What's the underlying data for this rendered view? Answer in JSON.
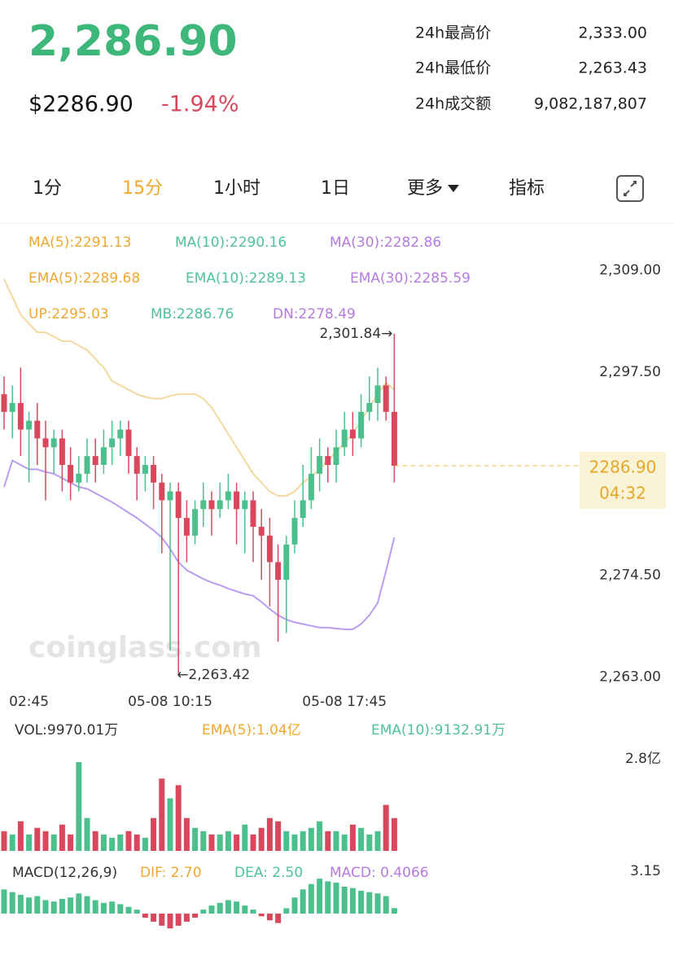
{
  "header": {
    "price": "2,286.90",
    "usd_price": "$2286.90",
    "change": "-1.94%",
    "stats": [
      {
        "label": "24h最高价",
        "value": "2,333.00"
      },
      {
        "label": "24h最低价",
        "value": "2,263.43"
      },
      {
        "label": "24h成交额",
        "value": "9,082,187,807"
      }
    ]
  },
  "tabs": [
    "1分",
    "15分",
    "1小时",
    "1日",
    "更多",
    "指标"
  ],
  "indicators": {
    "ma": [
      "MA(5):2291.13",
      "MA(10):2290.16",
      "MA(30):2282.86"
    ],
    "ema": [
      "EMA(5):2289.68",
      "EMA(10):2289.13",
      "EMA(30):2285.59"
    ],
    "boll": [
      "UP:2295.03",
      "MB:2286.76",
      "DN:2278.49"
    ]
  },
  "chart_data": [
    {
      "type": "candlestick",
      "categories": [
        null,
        null,
        null,
        "02:45",
        null,
        null,
        null,
        null,
        null,
        null,
        null,
        null,
        null,
        null,
        null,
        null,
        null,
        null,
        null,
        null,
        "05-08 10:15",
        null,
        null,
        null,
        null,
        null,
        null,
        null,
        null,
        null,
        null,
        null,
        null,
        null,
        null,
        null,
        null,
        null,
        null,
        null,
        null,
        "05-08 17:45",
        null,
        null,
        null,
        null,
        null,
        null
      ],
      "open": [
        2295,
        2293,
        2294,
        2291,
        2292,
        2290,
        2289,
        2290,
        2287,
        2285,
        2286,
        2288,
        2287,
        2289,
        2290,
        2291,
        2288,
        2286,
        2287,
        2285,
        2283,
        2284,
        2281,
        2279,
        2282,
        2283,
        2282,
        2283,
        2284,
        2282,
        2283,
        2280,
        2279,
        2276,
        2274,
        2278,
        2281,
        2283,
        2286,
        2288,
        2287,
        2289,
        2291,
        2290,
        2293,
        2294,
        2296,
        2293
      ],
      "high": [
        2297,
        2296,
        2298,
        2293,
        2294,
        2292,
        2291,
        2291,
        2289,
        2288,
        2290,
        2290,
        2291,
        2292,
        2292,
        2292,
        2289,
        2288,
        2288,
        2286,
        2285,
        2285,
        2283,
        2283,
        2285,
        2284,
        2285,
        2286,
        2285,
        2284,
        2284,
        2282,
        2281,
        2278,
        2279,
        2283,
        2287,
        2289,
        2290,
        2289,
        2291,
        2293,
        2293,
        2295,
        2297,
        2298,
        2297,
        2301.84
      ],
      "low": [
        2291,
        2290,
        2288,
        2285,
        2287,
        2283,
        2286,
        2284,
        2283,
        2284,
        2285,
        2285,
        2286,
        2287,
        2288,
        2286,
        2283,
        2284,
        2282,
        2277,
        2266,
        2263.42,
        2276,
        2278,
        2280,
        2279,
        2281,
        2282,
        2278,
        2277,
        2276,
        2274,
        2271,
        2267,
        2268,
        2277,
        2280,
        2282,
        2284,
        2285,
        2285,
        2288,
        2288,
        2289,
        2292,
        2292,
        2292,
        2285
      ],
      "close": [
        2293,
        2294,
        2291,
        2292,
        2290,
        2289,
        2290,
        2287,
        2285,
        2286,
        2288,
        2287,
        2289,
        2290,
        2291,
        2288,
        2286,
        2287,
        2285,
        2283,
        2284,
        2281,
        2279,
        2282,
        2283,
        2282,
        2283,
        2284,
        2282,
        2283,
        2280,
        2279,
        2276,
        2274,
        2278,
        2281,
        2283,
        2286,
        2288,
        2287,
        2289,
        2291,
        2290,
        2293,
        2294,
        2296,
        2293,
        2286.9
      ],
      "series": [
        {
          "name": "UP",
          "color": "#f3d9a0",
          "values": [
            2308,
            2306,
            2304,
            2303,
            2302,
            2302,
            2301.5,
            2301,
            2301,
            2300.5,
            2300,
            2299,
            2298,
            2296.5,
            2296,
            2295.5,
            2295,
            2294.7,
            2294.5,
            2294.5,
            2294.8,
            2295,
            2295,
            2295,
            2294.5,
            2293.5,
            2292,
            2290.5,
            2289,
            2287.5,
            2286,
            2285,
            2284,
            2283.5,
            2283.5,
            2284,
            2285,
            2285.7,
            2286.5,
            2287.5,
            2288.5,
            2289.5,
            2290.5,
            2292,
            2293.5,
            2295,
            2296.3,
            2295.5
          ]
        },
        {
          "name": "DN",
          "color": "#b99cf0",
          "values": [
            2284.5,
            2287.5,
            2287,
            2286.5,
            2286.5,
            2286.2,
            2286,
            2285.5,
            2285,
            2284.5,
            2284.3,
            2283.8,
            2283.3,
            2282.8,
            2282.2,
            2281.6,
            2281,
            2280.3,
            2279.6,
            2278.8,
            2277.5,
            2276,
            2275.1,
            2274.6,
            2274.1,
            2273.7,
            2273.4,
            2273,
            2272.7,
            2272.4,
            2272.2,
            2271.5,
            2270.7,
            2270,
            2269.5,
            2269.2,
            2269,
            2268.8,
            2268.6,
            2268.6,
            2268.5,
            2268.4,
            2268.4,
            2269,
            2270,
            2271.4,
            2275,
            2278.8
          ]
        }
      ],
      "up_color": "#4cc08c",
      "down_color": "#d9475c",
      "ylim": [
        2261.3,
        2313.8
      ],
      "yticks": [
        {
          "value": 2309,
          "label": "2,309.00"
        },
        {
          "value": 2297.5,
          "label": "2,297.50"
        },
        {
          "value": 2274.5,
          "label": "2,274.50"
        },
        {
          "value": 2263,
          "label": "2,263.00"
        }
      ],
      "current_price": 2286.9,
      "current_label": "2286.90",
      "countdown": "04:32",
      "high_label": "2,301.84→",
      "low_label": "←2,263.42",
      "watermark": "coinglass.com"
    },
    {
      "type": "bar",
      "legend": [
        "VOL:9970.01万",
        "EMA(5):1.04亿",
        "EMA(10):9132.91万"
      ],
      "values": [
        0.6,
        0.5,
        0.9,
        0.5,
        0.7,
        0.6,
        0.5,
        0.8,
        0.5,
        2.7,
        1.0,
        0.6,
        0.5,
        0.4,
        0.5,
        0.6,
        0.5,
        0.4,
        1.0,
        2.2,
        1.6,
        2.0,
        1.0,
        0.7,
        0.6,
        0.5,
        0.5,
        0.6,
        0.5,
        0.8,
        0.5,
        0.7,
        1.0,
        0.9,
        0.6,
        0.5,
        0.6,
        0.7,
        0.9,
        0.6,
        0.6,
        0.5,
        0.8,
        0.7,
        0.5,
        0.6,
        1.4,
        0.997
      ],
      "ylim": [
        0,
        2.8
      ],
      "yticks": [
        {
          "value": 2.8,
          "label": "2.8亿"
        }
      ]
    },
    {
      "type": "bar",
      "legend": [
        "MACD(12,26,9)",
        "DIF: 2.70",
        "DEA: 2.50",
        "MACD: 0.4066"
      ],
      "values": [
        1.8,
        1.6,
        1.4,
        1.2,
        1.3,
        1.0,
        0.9,
        1.1,
        1.2,
        1.5,
        1.3,
        1.0,
        0.8,
        0.9,
        0.7,
        0.5,
        0.3,
        -0.3,
        -0.6,
        -0.9,
        -1.1,
        -0.9,
        -0.6,
        -0.3,
        0.3,
        0.6,
        0.8,
        1.0,
        0.9,
        0.6,
        0.3,
        -0.2,
        -0.5,
        -0.7,
        0.4,
        1.2,
        1.8,
        2.2,
        2.6,
        2.4,
        2.3,
        2.0,
        1.9,
        1.7,
        1.6,
        1.5,
        1.3,
        0.4066
      ],
      "ylim": [
        -3.45,
        3.15
      ],
      "yticks": [
        3.15
      ]
    }
  ]
}
